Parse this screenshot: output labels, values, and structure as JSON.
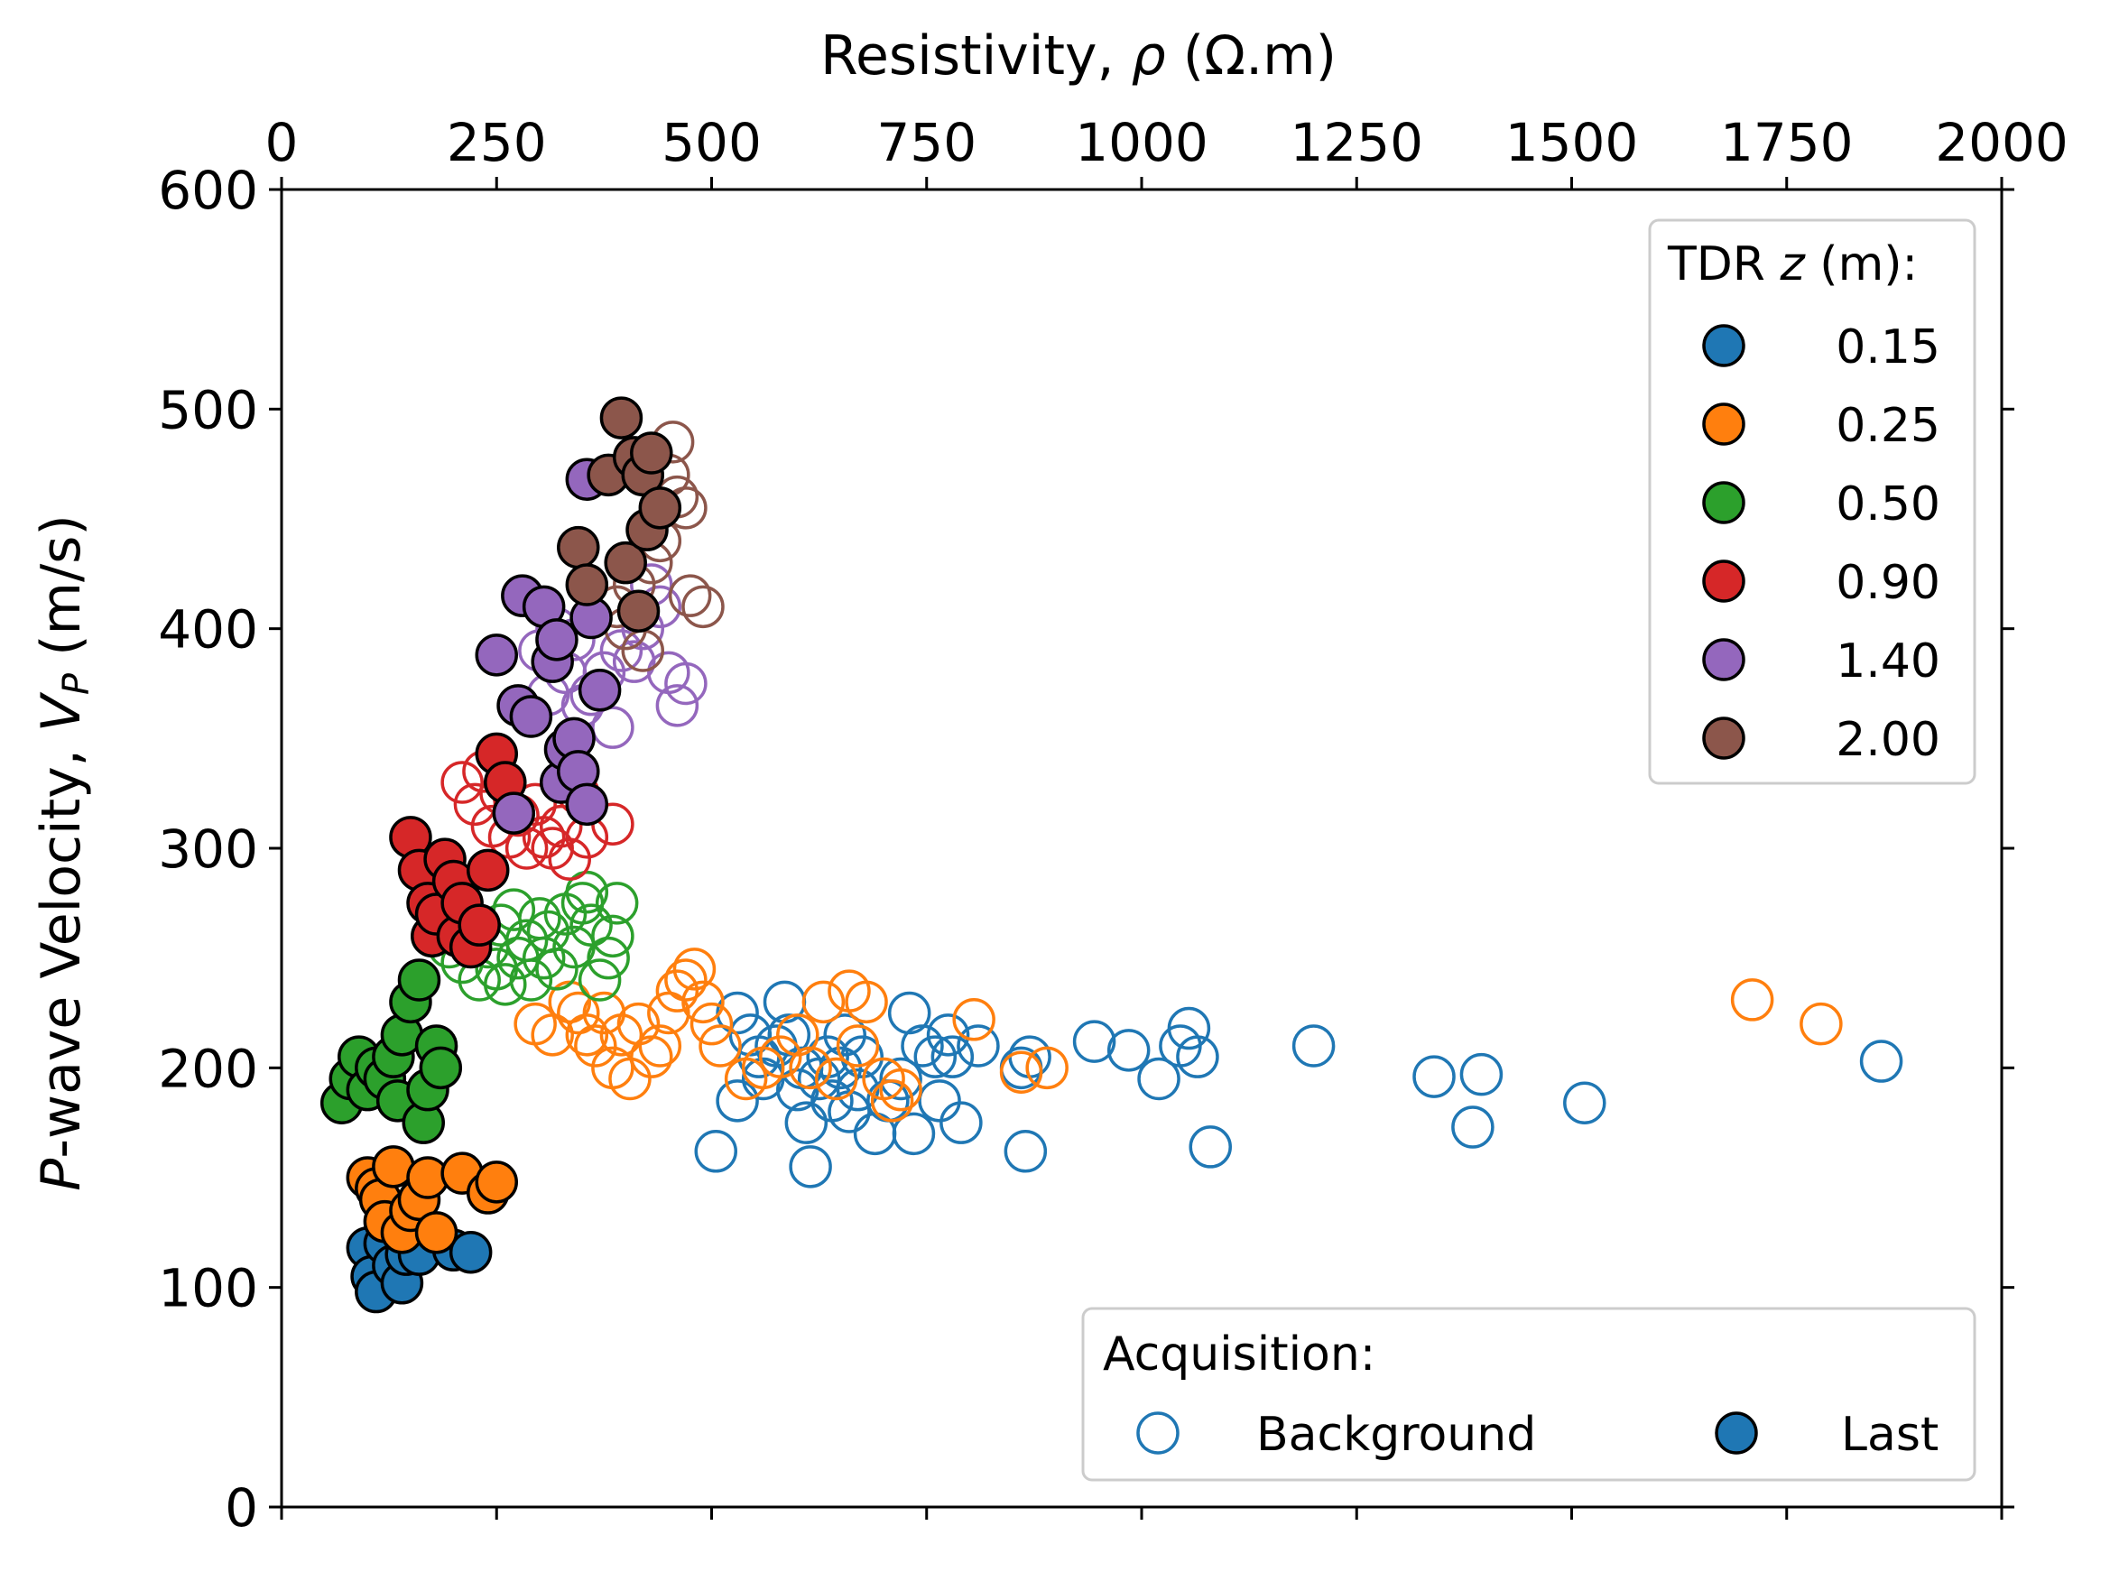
{
  "chart_data": {
    "type": "scatter",
    "xlabel_prefix": "Resistivity, ",
    "xlabel_symbol": "ρ",
    "xlabel_suffix": " (Ω.m)",
    "ylabel_prefix": "P",
    "ylabel_mid": "-wave Velocity, ",
    "ylabel_symbol": "V",
    "ylabel_sub": "P",
    "ylabel_suffix": " (m/s)",
    "xlim": [
      0,
      2000
    ],
    "ylim": [
      0,
      600
    ],
    "xticks": [
      "0",
      "250",
      "500",
      "750",
      "1000",
      "1250",
      "1500",
      "1750",
      "2000"
    ],
    "yticks": [
      "0",
      "100",
      "200",
      "300",
      "400",
      "500",
      "600"
    ],
    "x_axis_position": "top",
    "grid": false,
    "legend_depth": {
      "title_prefix": "TDR ",
      "title_symbol": "z",
      "title_suffix": " (m):",
      "placement": "top-right",
      "entries": [
        "0.15",
        "0.25",
        "0.50",
        "0.90",
        "1.40",
        "2.00"
      ]
    },
    "legend_acq": {
      "title": "Acquisition:",
      "placement": "lower-right",
      "entries": [
        "Background",
        "Last"
      ]
    },
    "series": [
      {
        "name": "0.15",
        "color": "#1f77b4",
        "background": [
          [
            530,
            225
          ],
          [
            545,
            215
          ],
          [
            555,
            205
          ],
          [
            560,
            195
          ],
          [
            575,
            210
          ],
          [
            585,
            230
          ],
          [
            590,
            215
          ],
          [
            600,
            190
          ],
          [
            605,
            200
          ],
          [
            610,
            175
          ],
          [
            625,
            195
          ],
          [
            635,
            205
          ],
          [
            640,
            185
          ],
          [
            650,
            200
          ],
          [
            655,
            215
          ],
          [
            660,
            180
          ],
          [
            670,
            190
          ],
          [
            675,
            205
          ],
          [
            690,
            170
          ],
          [
            705,
            185
          ],
          [
            720,
            195
          ],
          [
            730,
            225
          ],
          [
            735,
            170
          ],
          [
            745,
            210
          ],
          [
            760,
            205
          ],
          [
            765,
            185
          ],
          [
            775,
            215
          ],
          [
            780,
            205
          ],
          [
            790,
            175
          ],
          [
            810,
            210
          ],
          [
            860,
            200
          ],
          [
            865,
            162
          ],
          [
            870,
            205
          ],
          [
            945,
            212
          ],
          [
            985,
            208
          ],
          [
            1020,
            195
          ],
          [
            1045,
            210
          ],
          [
            1055,
            218
          ],
          [
            1065,
            205
          ],
          [
            1080,
            164
          ],
          [
            1200,
            210
          ],
          [
            1340,
            196
          ],
          [
            1395,
            197
          ],
          [
            1385,
            173
          ],
          [
            1515,
            184
          ],
          [
            1860,
            203
          ],
          [
            530,
            185
          ],
          [
            505,
            162
          ],
          [
            615,
            155
          ]
        ],
        "last": [
          [
            100,
            118
          ],
          [
            105,
            105
          ],
          [
            110,
            98
          ],
          [
            120,
            120
          ],
          [
            130,
            110
          ],
          [
            140,
            102
          ],
          [
            145,
            115
          ],
          [
            160,
            115
          ],
          [
            200,
            117
          ],
          [
            220,
            116
          ]
        ]
      },
      {
        "name": "0.25",
        "color": "#ff7f0e",
        "background": [
          [
            295,
            220
          ],
          [
            315,
            215
          ],
          [
            335,
            230
          ],
          [
            345,
            225
          ],
          [
            355,
            215
          ],
          [
            365,
            210
          ],
          [
            375,
            225
          ],
          [
            385,
            200
          ],
          [
            395,
            215
          ],
          [
            405,
            195
          ],
          [
            415,
            220
          ],
          [
            430,
            205
          ],
          [
            440,
            210
          ],
          [
            450,
            225
          ],
          [
            460,
            235
          ],
          [
            470,
            240
          ],
          [
            480,
            245
          ],
          [
            490,
            230
          ],
          [
            500,
            220
          ],
          [
            510,
            210
          ],
          [
            540,
            195
          ],
          [
            560,
            200
          ],
          [
            580,
            205
          ],
          [
            600,
            215
          ],
          [
            615,
            200
          ],
          [
            630,
            230
          ],
          [
            645,
            195
          ],
          [
            660,
            235
          ],
          [
            670,
            210
          ],
          [
            680,
            230
          ],
          [
            700,
            195
          ],
          [
            710,
            185
          ],
          [
            720,
            190
          ],
          [
            805,
            222
          ],
          [
            860,
            198
          ],
          [
            890,
            200
          ],
          [
            1710,
            231
          ],
          [
            1790,
            220
          ]
        ],
        "last": [
          [
            100,
            150
          ],
          [
            110,
            145
          ],
          [
            115,
            140
          ],
          [
            120,
            130
          ],
          [
            130,
            155
          ],
          [
            140,
            125
          ],
          [
            150,
            135
          ],
          [
            160,
            140
          ],
          [
            170,
            150
          ],
          [
            180,
            125
          ],
          [
            210,
            152
          ],
          [
            240,
            143
          ],
          [
            250,
            148
          ]
        ]
      },
      {
        "name": "0.50",
        "color": "#2ca02c",
        "background": [
          [
            195,
            255
          ],
          [
            210,
            248
          ],
          [
            220,
            262
          ],
          [
            230,
            240
          ],
          [
            240,
            255
          ],
          [
            250,
            245
          ],
          [
            255,
            265
          ],
          [
            260,
            238
          ],
          [
            270,
            272
          ],
          [
            275,
            250
          ],
          [
            285,
            258
          ],
          [
            290,
            240
          ],
          [
            300,
            268
          ],
          [
            305,
            250
          ],
          [
            310,
            262
          ],
          [
            320,
            245
          ],
          [
            330,
            270
          ],
          [
            340,
            255
          ],
          [
            350,
            275
          ],
          [
            355,
            280
          ],
          [
            360,
            265
          ],
          [
            370,
            240
          ],
          [
            380,
            250
          ],
          [
            385,
            260
          ],
          [
            390,
            275
          ]
        ],
        "last": [
          [
            70,
            184
          ],
          [
            80,
            195
          ],
          [
            90,
            205
          ],
          [
            100,
            190
          ],
          [
            110,
            200
          ],
          [
            120,
            195
          ],
          [
            130,
            205
          ],
          [
            135,
            185
          ],
          [
            140,
            215
          ],
          [
            150,
            230
          ],
          [
            160,
            240
          ],
          [
            165,
            175
          ],
          [
            170,
            190
          ],
          [
            180,
            210
          ],
          [
            185,
            200
          ]
        ]
      },
      {
        "name": "0.90",
        "color": "#d62728",
        "background": [
          [
            210,
            330
          ],
          [
            225,
            320
          ],
          [
            235,
            335
          ],
          [
            245,
            310
          ],
          [
            255,
            325
          ],
          [
            265,
            305
          ],
          [
            275,
            315
          ],
          [
            285,
            300
          ],
          [
            295,
            320
          ],
          [
            305,
            305
          ],
          [
            315,
            300
          ],
          [
            325,
            310
          ],
          [
            335,
            295
          ],
          [
            345,
            325
          ],
          [
            355,
            305
          ],
          [
            385,
            311
          ]
        ],
        "last": [
          [
            150,
            305
          ],
          [
            160,
            290
          ],
          [
            170,
            275
          ],
          [
            175,
            260
          ],
          [
            180,
            270
          ],
          [
            190,
            295
          ],
          [
            200,
            285
          ],
          [
            205,
            260
          ],
          [
            210,
            275
          ],
          [
            220,
            255
          ],
          [
            230,
            265
          ],
          [
            240,
            290
          ],
          [
            250,
            343
          ],
          [
            260,
            330
          ]
        ]
      },
      {
        "name": "1.40",
        "color": "#9467bd",
        "background": [
          [
            300,
            390
          ],
          [
            310,
            370
          ],
          [
            320,
            400
          ],
          [
            330,
            380
          ],
          [
            340,
            395
          ],
          [
            350,
            365
          ],
          [
            360,
            370
          ],
          [
            375,
            380
          ],
          [
            385,
            355
          ],
          [
            395,
            390
          ],
          [
            410,
            385
          ],
          [
            420,
            400
          ],
          [
            430,
            420
          ],
          [
            440,
            410
          ],
          [
            450,
            380
          ],
          [
            460,
            365
          ],
          [
            470,
            375
          ]
        ],
        "last": [
          [
            250,
            388
          ],
          [
            270,
            316
          ],
          [
            275,
            365
          ],
          [
            280,
            415
          ],
          [
            290,
            360
          ],
          [
            305,
            410
          ],
          [
            315,
            385
          ],
          [
            320,
            395
          ],
          [
            325,
            330
          ],
          [
            330,
            345
          ],
          [
            340,
            350
          ],
          [
            345,
            335
          ],
          [
            355,
            320
          ],
          [
            360,
            405
          ],
          [
            370,
            372
          ],
          [
            355,
            468
          ]
        ]
      },
      {
        "name": "2.00",
        "color": "#8c564b",
        "background": [
          [
            390,
            410
          ],
          [
            400,
            400
          ],
          [
            410,
            420
          ],
          [
            420,
            390
          ],
          [
            430,
            430
          ],
          [
            440,
            440
          ],
          [
            450,
            470
          ],
          [
            455,
            485
          ],
          [
            460,
            460
          ],
          [
            470,
            455
          ],
          [
            475,
            415
          ],
          [
            490,
            410
          ]
        ],
        "last": [
          [
            345,
            437
          ],
          [
            355,
            420
          ],
          [
            380,
            470
          ],
          [
            395,
            496
          ],
          [
            400,
            430
          ],
          [
            410,
            478
          ],
          [
            420,
            470
          ],
          [
            425,
            445
          ],
          [
            430,
            480
          ],
          [
            440,
            455
          ],
          [
            415,
            408
          ]
        ]
      }
    ]
  }
}
